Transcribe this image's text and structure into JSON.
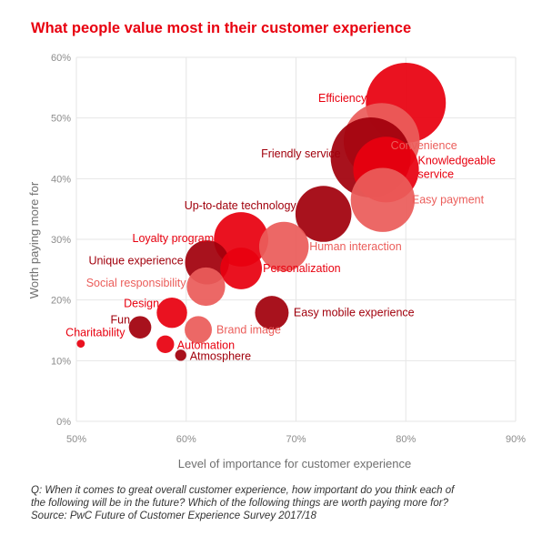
{
  "colors": {
    "bright_red": "#e8000f",
    "dark_red": "#a1000c",
    "salmon": "#eb5d5a",
    "label_gray": "#6f6f6f",
    "grid_gray": "#e6e6e6"
  },
  "chart_data": {
    "type": "scatter",
    "title": "What people value most in their customer experience",
    "xlabel": "Level of importance for customer experience",
    "ylabel": "Worth paying more for",
    "xlim": [
      50,
      90
    ],
    "ylim": [
      0,
      60
    ],
    "x_ticks": [
      "50%",
      "60%",
      "70%",
      "80%",
      "90%"
    ],
    "y_ticks": [
      "0%",
      "10%",
      "20%",
      "30%",
      "40%",
      "50%",
      "60%"
    ],
    "grid": true,
    "legend": "none",
    "points": [
      {
        "label": "Efficiency",
        "x": 80,
        "y": 52.5,
        "size": 1.0,
        "color": "bright_red"
      },
      {
        "label": "Convenience",
        "x": 77.8,
        "y": 46.2,
        "size": 0.95,
        "color": "salmon"
      },
      {
        "label": "Friendly service",
        "x": 76.8,
        "y": 43.5,
        "size": 1.0,
        "color": "dark_red"
      },
      {
        "label": "Knowledgeable service",
        "x": 78.2,
        "y": 41.5,
        "size": 0.82,
        "color": "bright_red"
      },
      {
        "label": "Easy payment",
        "x": 77.9,
        "y": 36.5,
        "size": 0.8,
        "color": "salmon"
      },
      {
        "label": "Up-to-date technology",
        "x": 72.5,
        "y": 34.2,
        "size": 0.7,
        "color": "dark_red"
      },
      {
        "label": "Loyalty program",
        "x": 65.0,
        "y": 30.0,
        "size": 0.68,
        "color": "bright_red"
      },
      {
        "label": "Human interaction",
        "x": 68.9,
        "y": 28.8,
        "size": 0.62,
        "color": "salmon"
      },
      {
        "label": "Unique experience",
        "x": 61.9,
        "y": 26.2,
        "size": 0.55,
        "color": "dark_red"
      },
      {
        "label": "Personalization",
        "x": 65.0,
        "y": 25.2,
        "size": 0.52,
        "color": "bright_red"
      },
      {
        "label": "Social responsibility",
        "x": 61.8,
        "y": 22.2,
        "size": 0.48,
        "color": "salmon"
      },
      {
        "label": "Design",
        "x": 58.7,
        "y": 17.9,
        "size": 0.38,
        "color": "bright_red"
      },
      {
        "label": "Easy mobile experience",
        "x": 67.8,
        "y": 17.9,
        "size": 0.42,
        "color": "dark_red"
      },
      {
        "label": "Fun",
        "x": 55.8,
        "y": 15.5,
        "size": 0.28,
        "color": "dark_red"
      },
      {
        "label": "Brand image",
        "x": 61.1,
        "y": 15.1,
        "size": 0.34,
        "color": "salmon"
      },
      {
        "label": "Charitability",
        "x": 50.4,
        "y": 12.8,
        "size": 0.1,
        "color": "bright_red"
      },
      {
        "label": "Automation",
        "x": 58.1,
        "y": 12.7,
        "size": 0.22,
        "color": "bright_red"
      },
      {
        "label": "Atmosphere",
        "x": 59.5,
        "y": 10.9,
        "size": 0.14,
        "color": "dark_red"
      }
    ]
  },
  "footnote": {
    "line1": "Q: When it comes to great overall customer experience, how important do you think each of",
    "line2": "the following will be in the future? Which of the following things are worth paying more for?",
    "line3": "Source: PwC Future of Customer Experience Survey 2017/18"
  }
}
